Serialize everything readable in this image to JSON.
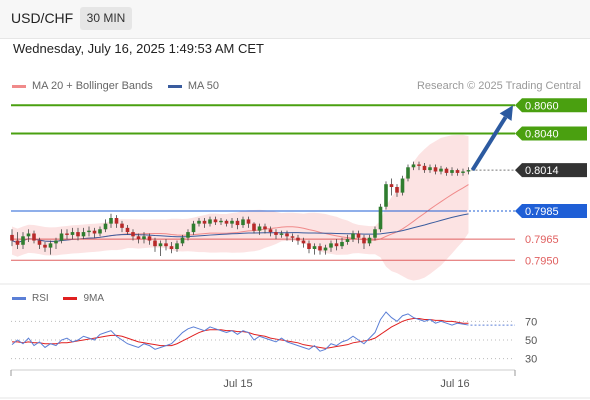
{
  "header": {
    "symbol": "USD/CHF",
    "timeframe": "30 MIN"
  },
  "date_label": "Wednesday, July 16, 2025 1:49:53 AM CET",
  "legend": {
    "ma20": {
      "label": "MA 20 + Bollinger Bands",
      "color": "#f08a8a"
    },
    "ma50": {
      "label": "MA 50",
      "color": "#3a5c9e"
    }
  },
  "credit": "Research © 2025 Trading Central",
  "rsi_legend": {
    "rsi": {
      "label": "RSI",
      "color": "#5b7fd6"
    },
    "ma9": {
      "label": "9MA",
      "color": "#e02020"
    }
  },
  "chart_data": {
    "type": "candlestick",
    "x_ticks": [
      "Jul 15",
      "Jul 16"
    ],
    "y_range": [
      0.7936,
      0.8068
    ],
    "levels": [
      {
        "value": "0.8060",
        "kind": "resistance",
        "color": "#4aa010"
      },
      {
        "value": "0.8040",
        "kind": "resistance",
        "color": "#4aa010"
      },
      {
        "value": "0.8014",
        "kind": "last",
        "color": "#333333"
      },
      {
        "value": "0.7985",
        "kind": "pivot",
        "color": "#1f5fd6"
      },
      {
        "value": "0.7965",
        "kind": "support",
        "color": "#e06060"
      },
      {
        "value": "0.7950",
        "kind": "support",
        "color": "#e06060"
      }
    ],
    "candles": [
      [
        0.7968,
        0.7964,
        0.7972,
        0.796
      ],
      [
        0.7964,
        0.7961,
        0.797,
        0.7958
      ],
      [
        0.7961,
        0.7967,
        0.797,
        0.7958
      ],
      [
        0.7967,
        0.7969,
        0.7972,
        0.7963
      ],
      [
        0.7969,
        0.7964,
        0.7971,
        0.7962
      ],
      [
        0.7964,
        0.7961,
        0.7966,
        0.7958
      ],
      [
        0.7961,
        0.7959,
        0.7963,
        0.7956
      ],
      [
        0.7959,
        0.7962,
        0.7964,
        0.7954
      ],
      [
        0.7962,
        0.7964,
        0.7966,
        0.7958
      ],
      [
        0.7964,
        0.7969,
        0.7972,
        0.7962
      ],
      [
        0.7969,
        0.7968,
        0.7972,
        0.7965
      ],
      [
        0.7968,
        0.797,
        0.7973,
        0.7965
      ],
      [
        0.797,
        0.7967,
        0.7973,
        0.7964
      ],
      [
        0.7967,
        0.797,
        0.7973,
        0.7965
      ],
      [
        0.797,
        0.7971,
        0.7974,
        0.7967
      ],
      [
        0.7971,
        0.7969,
        0.7973,
        0.7966
      ],
      [
        0.7969,
        0.7972,
        0.7974,
        0.7967
      ],
      [
        0.7972,
        0.7976,
        0.7979,
        0.797
      ],
      [
        0.7976,
        0.798,
        0.7983,
        0.7973
      ],
      [
        0.798,
        0.7976,
        0.7982,
        0.7973
      ],
      [
        0.7976,
        0.7973,
        0.7978,
        0.797
      ],
      [
        0.7973,
        0.797,
        0.7975,
        0.7968
      ],
      [
        0.797,
        0.7967,
        0.7972,
        0.7964
      ],
      [
        0.7967,
        0.7965,
        0.7969,
        0.7962
      ],
      [
        0.7965,
        0.7967,
        0.797,
        0.7962
      ],
      [
        0.7967,
        0.7964,
        0.7969,
        0.7961
      ],
      [
        0.7964,
        0.796,
        0.7966,
        0.7956
      ],
      [
        0.796,
        0.7962,
        0.7964,
        0.7953
      ],
      [
        0.7962,
        0.796,
        0.7965,
        0.7957
      ],
      [
        0.796,
        0.7958,
        0.7963,
        0.7955
      ],
      [
        0.7958,
        0.7962,
        0.7964,
        0.7956
      ],
      [
        0.7962,
        0.7966,
        0.7968,
        0.796
      ],
      [
        0.7966,
        0.797,
        0.7972,
        0.7964
      ],
      [
        0.797,
        0.7976,
        0.7978,
        0.7968
      ],
      [
        0.7976,
        0.7978,
        0.798,
        0.7974
      ],
      [
        0.7978,
        0.7976,
        0.798,
        0.7973
      ],
      [
        0.7976,
        0.7979,
        0.7981,
        0.7974
      ],
      [
        0.7979,
        0.7977,
        0.7981,
        0.7975
      ],
      [
        0.7977,
        0.7978,
        0.798,
        0.7975
      ],
      [
        0.7978,
        0.7976,
        0.7979,
        0.7974
      ],
      [
        0.7976,
        0.7978,
        0.798,
        0.7973
      ],
      [
        0.7978,
        0.7975,
        0.798,
        0.7972
      ],
      [
        0.7975,
        0.7979,
        0.7981,
        0.7973
      ],
      [
        0.7979,
        0.7976,
        0.7981,
        0.7973
      ],
      [
        0.7976,
        0.7971,
        0.7977,
        0.7969
      ],
      [
        0.7971,
        0.7974,
        0.7976,
        0.7968
      ],
      [
        0.7974,
        0.7972,
        0.7976,
        0.7969
      ],
      [
        0.7972,
        0.797,
        0.7974,
        0.7967
      ],
      [
        0.797,
        0.7968,
        0.7972,
        0.7965
      ],
      [
        0.7968,
        0.7969,
        0.7971,
        0.7966
      ],
      [
        0.7969,
        0.7967,
        0.7971,
        0.7964
      ],
      [
        0.7967,
        0.7966,
        0.7969,
        0.7963
      ],
      [
        0.7966,
        0.7964,
        0.7968,
        0.7961
      ],
      [
        0.7964,
        0.7962,
        0.7966,
        0.7959
      ],
      [
        0.7962,
        0.7958,
        0.7964,
        0.7955
      ],
      [
        0.7958,
        0.796,
        0.7962,
        0.7954
      ],
      [
        0.796,
        0.7957,
        0.7962,
        0.7954
      ],
      [
        0.7957,
        0.7959,
        0.7961,
        0.7954
      ],
      [
        0.7959,
        0.7962,
        0.7964,
        0.7956
      ],
      [
        0.7962,
        0.796,
        0.7965,
        0.7957
      ],
      [
        0.796,
        0.7963,
        0.7966,
        0.7958
      ],
      [
        0.7963,
        0.7965,
        0.7968,
        0.7961
      ],
      [
        0.7965,
        0.7969,
        0.7971,
        0.7963
      ],
      [
        0.7969,
        0.7966,
        0.7971,
        0.7962
      ],
      [
        0.7966,
        0.7962,
        0.7968,
        0.7958
      ],
      [
        0.7962,
        0.7966,
        0.7968,
        0.796
      ],
      [
        0.7966,
        0.7972,
        0.7974,
        0.7964
      ],
      [
        0.7972,
        0.7988,
        0.799,
        0.797
      ],
      [
        0.7988,
        0.8004,
        0.8006,
        0.7986
      ],
      [
        0.8004,
        0.8002,
        0.8008,
        0.7996
      ],
      [
        0.8002,
        0.7998,
        0.8004,
        0.7995
      ],
      [
        0.7998,
        0.8008,
        0.801,
        0.7996
      ],
      [
        0.8008,
        0.8016,
        0.8018,
        0.8006
      ],
      [
        0.8016,
        0.8018,
        0.802,
        0.8014
      ],
      [
        0.8018,
        0.8017,
        0.802,
        0.8014
      ],
      [
        0.8017,
        0.8014,
        0.8019,
        0.8012
      ],
      [
        0.8014,
        0.8016,
        0.8018,
        0.8012
      ],
      [
        0.8016,
        0.8013,
        0.8018,
        0.8011
      ],
      [
        0.8013,
        0.8015,
        0.8017,
        0.8011
      ],
      [
        0.8015,
        0.8012,
        0.8016,
        0.801
      ],
      [
        0.8012,
        0.8014,
        0.8016,
        0.801
      ],
      [
        0.8014,
        0.8012,
        0.8015,
        0.801
      ],
      [
        0.8012,
        0.8013,
        0.8015,
        0.801
      ],
      [
        0.8013,
        0.8014,
        0.8016,
        0.8011
      ]
    ],
    "target_arrow": {
      "from": 0.8014,
      "to": 0.806
    },
    "rsi": {
      "levels": [
        "70",
        "50",
        "30"
      ],
      "range": [
        20,
        80
      ],
      "rsi_values": [
        45,
        50,
        46,
        52,
        44,
        48,
        42,
        46,
        44,
        50,
        52,
        48,
        50,
        54,
        52,
        50,
        56,
        58,
        60,
        54,
        50,
        46,
        44,
        42,
        46,
        44,
        40,
        42,
        44,
        46,
        52,
        58,
        62,
        64,
        62,
        60,
        64,
        62,
        60,
        58,
        60,
        56,
        60,
        58,
        50,
        54,
        52,
        50,
        48,
        52,
        48,
        46,
        44,
        42,
        40,
        44,
        38,
        40,
        46,
        44,
        48,
        50,
        54,
        50,
        46,
        52,
        58,
        72,
        80,
        74,
        70,
        76,
        78,
        74,
        72,
        70,
        72,
        68,
        70,
        68,
        66,
        68,
        67,
        66
      ],
      "ma9_values": [
        48,
        48,
        47,
        48,
        47,
        47,
        46,
        46,
        46,
        47,
        47,
        48,
        49,
        50,
        51,
        52,
        53,
        54,
        55,
        55,
        54,
        52,
        50,
        48,
        47,
        46,
        45,
        44,
        44,
        44,
        46,
        49,
        52,
        55,
        58,
        60,
        61,
        61,
        61,
        60,
        60,
        59,
        59,
        58,
        56,
        55,
        54,
        52,
        51,
        50,
        49,
        48,
        47,
        45,
        44,
        43,
        42,
        41,
        42,
        43,
        44,
        45,
        47,
        48,
        49,
        50,
        52,
        56,
        60,
        64,
        67,
        70,
        72,
        73,
        73,
        72,
        72,
        71,
        71,
        70,
        70,
        69,
        68,
        68
      ]
    }
  }
}
